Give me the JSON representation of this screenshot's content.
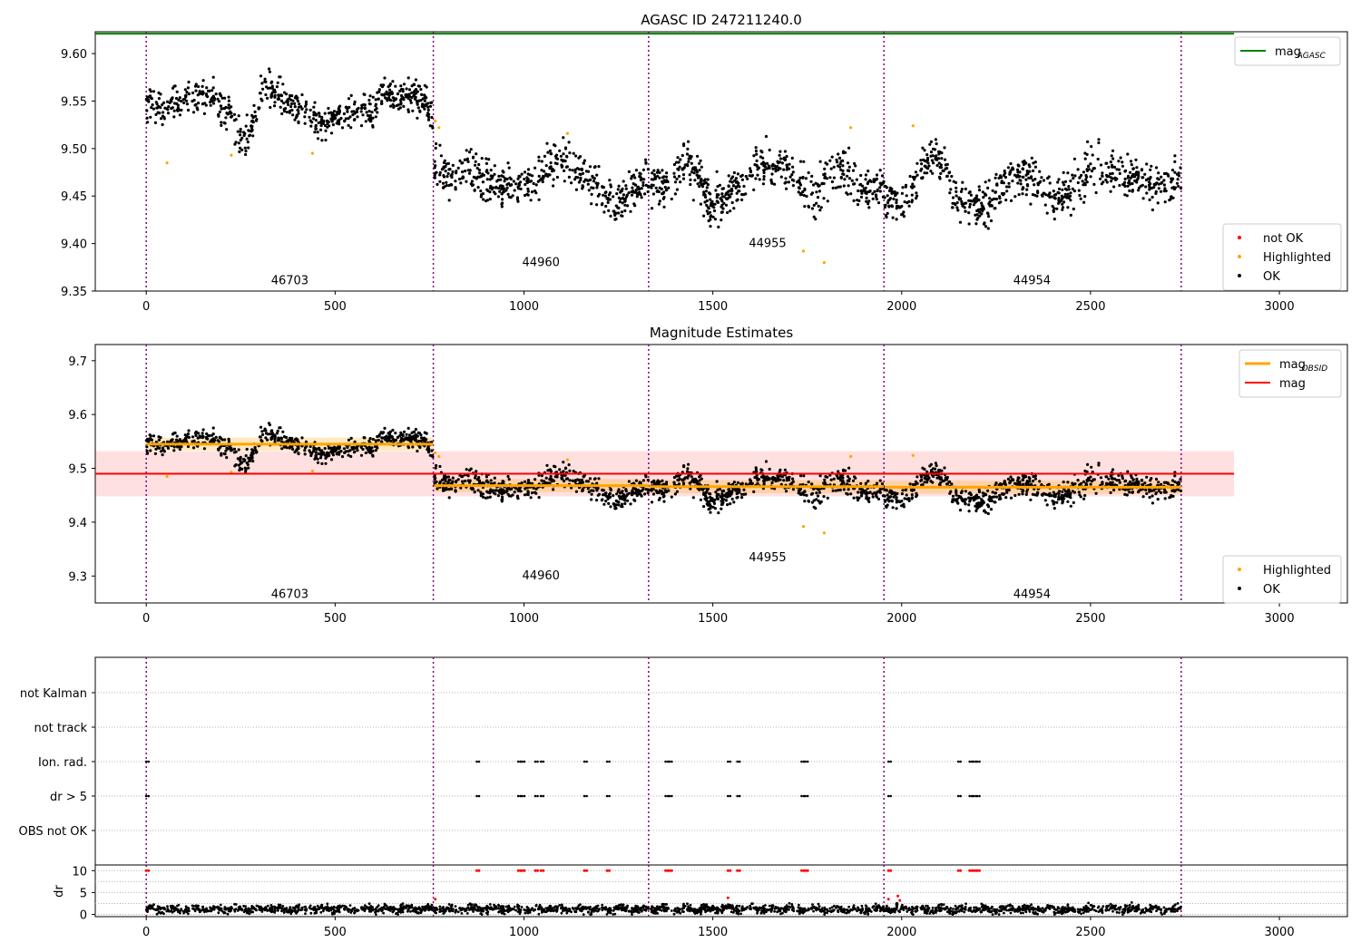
{
  "figure": {
    "title_top": "AGASC ID 247211240.0",
    "title_middle": "Magnitude Estimates"
  },
  "colors": {
    "ok": "#000000",
    "highlighted": "#ffa500",
    "not_ok": "#ff0000",
    "mag_agasc": "#008000",
    "mag_obsid": "#ffa500",
    "mag": "#ff0000",
    "obsid_boundary": "#800080"
  },
  "chart_data": [
    {
      "type": "scatter",
      "title": "AGASC ID 247211240.0",
      "xlim": [
        -135,
        3180
      ],
      "ylim": [
        9.35,
        9.623
      ],
      "xticks": [
        0,
        500,
        1000,
        1500,
        2000,
        2500,
        3000
      ],
      "yticks": [
        9.35,
        9.4,
        9.45,
        9.5,
        9.55,
        9.6
      ],
      "ytick_labels": [
        "9.35",
        "9.40",
        "9.45",
        "9.50",
        "9.55",
        "9.60"
      ],
      "legends": [
        {
          "placement": "top-right",
          "entries": [
            {
              "label": "mag",
              "subscript": "AGASC",
              "marker": "line",
              "color": "#008000"
            }
          ]
        },
        {
          "placement": "bottom-right",
          "entries": [
            {
              "label": "not OK",
              "marker": "dot",
              "color": "#ff0000"
            },
            {
              "label": "Highlighted",
              "marker": "dot",
              "color": "#ffa500"
            },
            {
              "label": "OK",
              "marker": "dot",
              "color": "#000000"
            }
          ]
        }
      ],
      "mag_agasc": 9.621,
      "obsid_boundaries": [
        0,
        760,
        1330,
        1953,
        2740
      ],
      "obsids": [
        {
          "label": "46703",
          "x": 380,
          "y": 9.362
        },
        {
          "label": "44960",
          "x": 1045,
          "y": 9.381
        },
        {
          "label": "44955",
          "x": 1645,
          "y": 9.401
        },
        {
          "label": "44954",
          "x": 2345,
          "y": 9.362
        }
      ],
      "segments": [
        {
          "obsid": "46703",
          "x_range": [
            0,
            760
          ],
          "anchors": [
            [
              0,
              9.547
            ],
            [
              60,
              9.545
            ],
            [
              120,
              9.552
            ],
            [
              180,
              9.553
            ],
            [
              215,
              9.538
            ],
            [
              240,
              9.515
            ],
            [
              265,
              9.51
            ],
            [
              290,
              9.535
            ],
            [
              310,
              9.563
            ],
            [
              340,
              9.56
            ],
            [
              380,
              9.545
            ],
            [
              420,
              9.54
            ],
            [
              440,
              9.53
            ],
            [
              480,
              9.528
            ],
            [
              520,
              9.532
            ],
            [
              550,
              9.54
            ],
            [
              580,
              9.55
            ],
            [
              600,
              9.532
            ],
            [
              625,
              9.565
            ],
            [
              660,
              9.555
            ],
            [
              700,
              9.56
            ],
            [
              735,
              9.55
            ],
            [
              760,
              9.53
            ]
          ],
          "noise": 0.009
        },
        {
          "obsid": "44960",
          "x_range": [
            762,
            1330
          ],
          "anchors": [
            [
              762,
              9.482
            ],
            [
              800,
              9.468
            ],
            [
              850,
              9.48
            ],
            [
              900,
              9.465
            ],
            [
              950,
              9.46
            ],
            [
              1000,
              9.46
            ],
            [
              1050,
              9.475
            ],
            [
              1100,
              9.49
            ],
            [
              1150,
              9.475
            ],
            [
              1200,
              9.462
            ],
            [
              1240,
              9.44
            ],
            [
              1280,
              9.455
            ],
            [
              1330,
              9.47
            ]
          ],
          "noise": 0.011
        },
        {
          "obsid": "44955",
          "x_range": [
            1332,
            1953
          ],
          "anchors": [
            [
              1332,
              9.465
            ],
            [
              1370,
              9.455
            ],
            [
              1420,
              9.485
            ],
            [
              1460,
              9.47
            ],
            [
              1500,
              9.44
            ],
            [
              1560,
              9.46
            ],
            [
              1620,
              9.48
            ],
            [
              1680,
              9.485
            ],
            [
              1730,
              9.465
            ],
            [
              1770,
              9.445
            ],
            [
              1810,
              9.475
            ],
            [
              1850,
              9.48
            ],
            [
              1890,
              9.455
            ],
            [
              1953,
              9.46
            ]
          ],
          "noise": 0.011
        },
        {
          "obsid": "44954",
          "x_range": [
            1955,
            2740
          ],
          "anchors": [
            [
              1955,
              9.45
            ],
            [
              2000,
              9.44
            ],
            [
              2040,
              9.465
            ],
            [
              2080,
              9.495
            ],
            [
              2120,
              9.48
            ],
            [
              2150,
              9.44
            ],
            [
              2220,
              9.44
            ],
            [
              2280,
              9.47
            ],
            [
              2350,
              9.465
            ],
            [
              2400,
              9.45
            ],
            [
              2450,
              9.455
            ],
            [
              2500,
              9.48
            ],
            [
              2560,
              9.475
            ],
            [
              2620,
              9.47
            ],
            [
              2680,
              9.46
            ],
            [
              2740,
              9.47
            ]
          ],
          "noise": 0.011
        }
      ],
      "highlighted_points": [
        [
          55,
          9.485
        ],
        [
          225,
          9.493
        ],
        [
          440,
          9.495
        ],
        [
          765,
          9.529
        ],
        [
          775,
          9.522
        ],
        [
          1115,
          9.516
        ],
        [
          1740,
          9.392
        ],
        [
          1795,
          9.38
        ],
        [
          1865,
          9.522
        ],
        [
          2030,
          9.524
        ]
      ]
    },
    {
      "type": "scatter",
      "title": "Magnitude Estimates",
      "xlim": [
        -135,
        3180
      ],
      "ylim": [
        9.25,
        9.73
      ],
      "xticks": [
        0,
        500,
        1000,
        1500,
        2000,
        2500,
        3000
      ],
      "yticks": [
        9.3,
        9.4,
        9.5,
        9.6,
        9.7
      ],
      "ytick_labels": [
        "9.3",
        "9.4",
        "9.5",
        "9.6",
        "9.7"
      ],
      "legends": [
        {
          "placement": "top-right",
          "entries": [
            {
              "label": "mag",
              "subscript": "OBSID",
              "marker": "thick-line",
              "color": "#ffa500"
            },
            {
              "label": "mag",
              "marker": "line",
              "color": "#ff0000"
            }
          ]
        },
        {
          "placement": "bottom-right",
          "entries": [
            {
              "label": "Highlighted",
              "marker": "dot",
              "color": "#ffa500"
            },
            {
              "label": "OK",
              "marker": "dot",
              "color": "#000000"
            }
          ]
        }
      ],
      "mag": 9.49,
      "mag_band": [
        9.448,
        9.532
      ],
      "obsid_mags": [
        {
          "x_range": [
            0,
            760
          ],
          "mag": 9.545,
          "band": [
            9.533,
            9.557
          ]
        },
        {
          "x_range": [
            762,
            1330
          ],
          "mag": 9.468,
          "band": [
            9.456,
            9.48
          ]
        },
        {
          "x_range": [
            1332,
            1953
          ],
          "mag": 9.466,
          "band": [
            9.454,
            9.478
          ]
        },
        {
          "x_range": [
            1955,
            2740
          ],
          "mag": 9.465,
          "band": [
            9.453,
            9.477
          ]
        }
      ],
      "obsid_boundaries": [
        0,
        760,
        1330,
        1953,
        2740
      ],
      "obsids": [
        {
          "label": "46703",
          "x": 380,
          "y": 9.268
        },
        {
          "label": "44960",
          "x": 1045,
          "y": 9.302
        },
        {
          "label": "44955",
          "x": 1645,
          "y": 9.336
        },
        {
          "label": "44954",
          "x": 2345,
          "y": 9.268
        }
      ]
    },
    {
      "type": "scatter",
      "title": "",
      "xlim": [
        -135,
        3180
      ],
      "ylim": [
        0,
        6
      ],
      "xticks": [
        0,
        500,
        1000,
        1500,
        2000,
        2500,
        3000
      ],
      "ylabels": [
        "not Kalman",
        "not track",
        "Ion. rad.",
        "dr > 5",
        "OBS not OK"
      ],
      "obsid_boundaries": [
        0,
        760,
        1330,
        1953,
        2740
      ],
      "flag_x": [
        0,
        875,
        985,
        995,
        1030,
        1045,
        1160,
        1220,
        1375,
        1385,
        1540,
        1565,
        1735,
        1745,
        1965,
        2150,
        2180,
        2190,
        2200
      ],
      "flag_rows": [
        "Ion. rad.",
        "dr > 5"
      ]
    },
    {
      "type": "scatter",
      "title": "",
      "ylabel": "dr",
      "xlim": [
        -135,
        3180
      ],
      "ylim": [
        -0.5,
        11.3
      ],
      "xticks": [
        0,
        500,
        1000,
        1500,
        2000,
        2500,
        3000
      ],
      "xtick_labels": [
        "0",
        "500",
        "1000",
        "1500",
        "2000",
        "2500",
        "3000"
      ],
      "yticks": [
        0,
        5,
        10
      ],
      "ytick_labels": [
        "0",
        "5",
        "10"
      ],
      "dr_limit": 10,
      "obsid_boundaries": [
        0,
        760,
        1330,
        1953,
        2740
      ],
      "not_ok_extra": [
        [
          765,
          3.5
        ],
        [
          1540,
          3.8
        ],
        [
          1965,
          3.5
        ],
        [
          1990,
          4.2
        ],
        [
          1995,
          3.2
        ]
      ]
    }
  ]
}
